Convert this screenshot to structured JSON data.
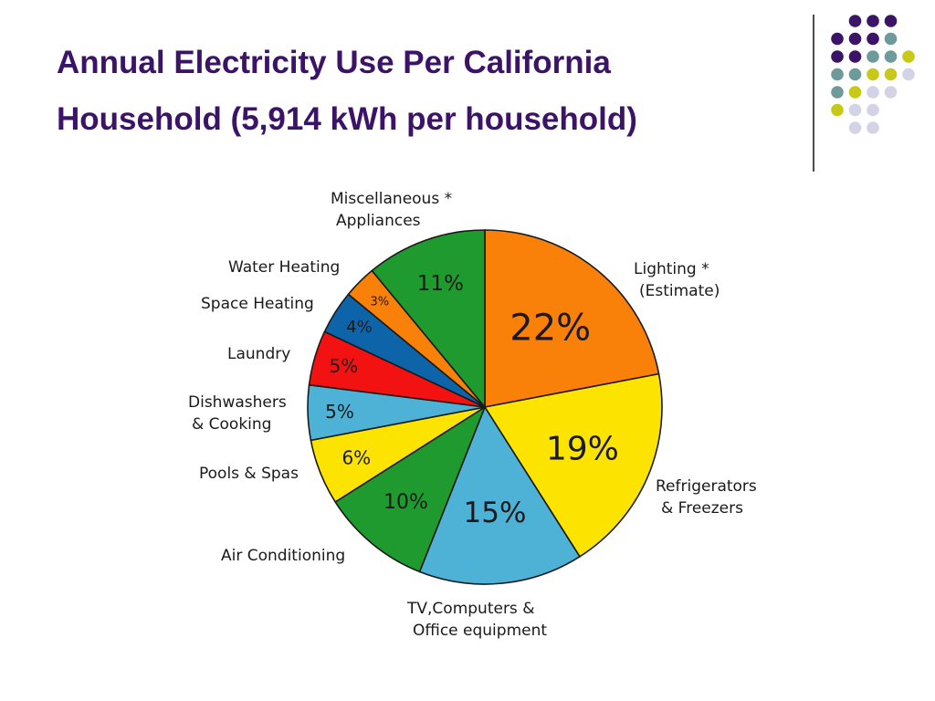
{
  "slide": {
    "title_line_1": "Annual Electricity Use Per California",
    "title_line_2": "Household (5,914 kWh per household)",
    "title_color": "#3b1467"
  },
  "decoration": {
    "dot_colors": {
      "purple": "#3b1467",
      "teal": "#6e9a9a",
      "olive": "#c8c818",
      "lavender": "#d3d3e6"
    },
    "divider_color": "#4d4d4d"
  },
  "chart_data": {
    "type": "pie",
    "title": "Annual Electricity Use Per California Household (5,914 kWh per household)",
    "unit": "%",
    "slices": [
      {
        "label": [
          "Lighting *",
          "(Estimate)"
        ],
        "value": 22,
        "value_label": "22%",
        "color": "#f98009"
      },
      {
        "label": [
          "Refrigerators",
          "& Freezers"
        ],
        "value": 19,
        "value_label": "19%",
        "color": "#fde300"
      },
      {
        "label": [
          "TV,Computers &",
          "Office equipment"
        ],
        "value": 15,
        "value_label": "15%",
        "color": "#4eb1d6"
      },
      {
        "label": [
          "Air Conditioning"
        ],
        "value": 10,
        "value_label": "10%",
        "color": "#1f9a2e"
      },
      {
        "label": [
          "Pools & Spas"
        ],
        "value": 6,
        "value_label": "6%",
        "color": "#fde300"
      },
      {
        "label": [
          "Dishwashers",
          "& Cooking"
        ],
        "value": 5,
        "value_label": "5%",
        "color": "#4eb1d6"
      },
      {
        "label": [
          "Laundry"
        ],
        "value": 5,
        "value_label": "5%",
        "color": "#f31212"
      },
      {
        "label": [
          "Space Heating"
        ],
        "value": 4,
        "value_label": "4%",
        "color": "#0e64a8"
      },
      {
        "label": [
          "Water Heating"
        ],
        "value": 3,
        "value_label": "3%",
        "color": "#f98009"
      },
      {
        "label": [
          "Miscellaneous *",
          "Appliances"
        ],
        "value": 11,
        "value_label": "11%",
        "color": "#1f9a2e"
      }
    ]
  }
}
